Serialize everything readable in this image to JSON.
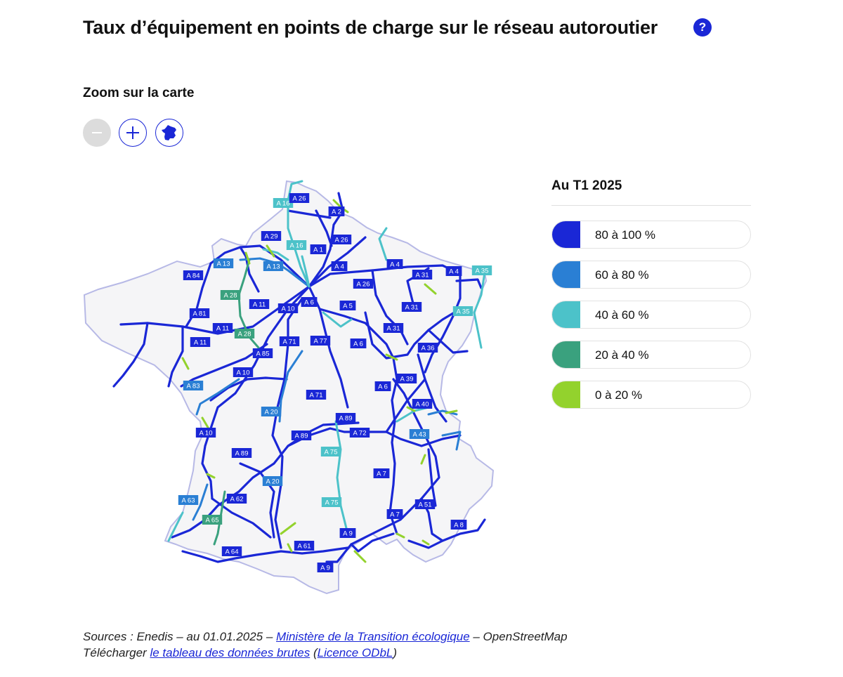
{
  "header": {
    "title": "Taux d’équipement en points de charge sur le réseau autoroutier",
    "help_glyph": "?"
  },
  "zoom": {
    "label": "Zoom sur la carte",
    "buttons": [
      {
        "name": "zoom-out-button",
        "icon": "minus-icon",
        "enabled": false
      },
      {
        "name": "zoom-in-button",
        "icon": "plus-icon",
        "enabled": true
      },
      {
        "name": "reset-france-button",
        "icon": "france-map-icon",
        "enabled": true
      }
    ]
  },
  "legend": {
    "title": "Au T1 2025",
    "items": [
      {
        "label": "80 à 100 %",
        "color": "#1a27d6"
      },
      {
        "label": "60 à 80 %",
        "color": "#2a7fd4"
      },
      {
        "label": "40 à 60 %",
        "color": "#4cc2c9"
      },
      {
        "label": "20 à 40 %",
        "color": "#3aa17e"
      },
      {
        "label": "0 à 20 %",
        "color": "#93d22d"
      }
    ]
  },
  "map": {
    "road_labels": [
      {
        "text": "A 16",
        "class": "c40"
      },
      {
        "text": "A 26",
        "class": "c80"
      },
      {
        "text": "A 2",
        "class": "c80"
      },
      {
        "text": "A 29",
        "class": "c80"
      },
      {
        "text": "A 16",
        "class": "c40"
      },
      {
        "text": "A 1",
        "class": "c80"
      },
      {
        "text": "A 26",
        "class": "c80"
      },
      {
        "text": "A 13",
        "class": "c60"
      },
      {
        "text": "A 13",
        "class": "c60"
      },
      {
        "text": "A 4",
        "class": "c80"
      },
      {
        "text": "A 4",
        "class": "c80"
      },
      {
        "text": "A 4",
        "class": "c80"
      },
      {
        "text": "A 35",
        "class": "c40"
      },
      {
        "text": "A 84",
        "class": "c80"
      },
      {
        "text": "A 31",
        "class": "c80"
      },
      {
        "text": "A 26",
        "class": "c80"
      },
      {
        "text": "A 28",
        "class": "c20"
      },
      {
        "text": "A 11",
        "class": "c80"
      },
      {
        "text": "A 10",
        "class": "c80"
      },
      {
        "text": "A 6",
        "class": "c80"
      },
      {
        "text": "A 5",
        "class": "c80"
      },
      {
        "text": "A 31",
        "class": "c80"
      },
      {
        "text": "A 35",
        "class": "c40"
      },
      {
        "text": "A 81",
        "class": "c80"
      },
      {
        "text": "A 11",
        "class": "c80"
      },
      {
        "text": "A 31",
        "class": "c80"
      },
      {
        "text": "A 28",
        "class": "c20"
      },
      {
        "text": "A 11",
        "class": "c80"
      },
      {
        "text": "A 71",
        "class": "c80"
      },
      {
        "text": "A 77",
        "class": "c80"
      },
      {
        "text": "A 6",
        "class": "c80"
      },
      {
        "text": "A 36",
        "class": "c80"
      },
      {
        "text": "A 85",
        "class": "c80"
      },
      {
        "text": "A 10",
        "class": "c80"
      },
      {
        "text": "A 39",
        "class": "c80"
      },
      {
        "text": "A 83",
        "class": "c60"
      },
      {
        "text": "A 6",
        "class": "c80"
      },
      {
        "text": "A 71",
        "class": "c80"
      },
      {
        "text": "A 40",
        "class": "c80"
      },
      {
        "text": "A 20",
        "class": "c60"
      },
      {
        "text": "A 89",
        "class": "c80"
      },
      {
        "text": "A 10",
        "class": "c80"
      },
      {
        "text": "A 72",
        "class": "c80"
      },
      {
        "text": "A 43",
        "class": "c60"
      },
      {
        "text": "A 89",
        "class": "c80"
      },
      {
        "text": "A 75",
        "class": "c40"
      },
      {
        "text": "A 89",
        "class": "c80"
      },
      {
        "text": "A 7",
        "class": "c80"
      },
      {
        "text": "A 20",
        "class": "c60"
      },
      {
        "text": "A 63",
        "class": "c60"
      },
      {
        "text": "A 62",
        "class": "c80"
      },
      {
        "text": "A 75",
        "class": "c40"
      },
      {
        "text": "A 51",
        "class": "c80"
      },
      {
        "text": "A 65",
        "class": "c20"
      },
      {
        "text": "A 7",
        "class": "c80"
      },
      {
        "text": "A 8",
        "class": "c80"
      },
      {
        "text": "A 9",
        "class": "c80"
      },
      {
        "text": "A 61",
        "class": "c80"
      },
      {
        "text": "A 64",
        "class": "c80"
      },
      {
        "text": "A 9",
        "class": "c80"
      }
    ]
  },
  "sources": {
    "line1_prefix": "Sources : Enedis – au 01.01.2025 – ",
    "link1": "Ministère de la Transition écologique",
    "line1_suffix": " – OpenStreetMap",
    "line2_prefix": "Télécharger ",
    "link2": "le tableau des données brutes",
    "line2_mid": " (",
    "link3": "Licence ODbL",
    "line2_suffix": ")"
  }
}
